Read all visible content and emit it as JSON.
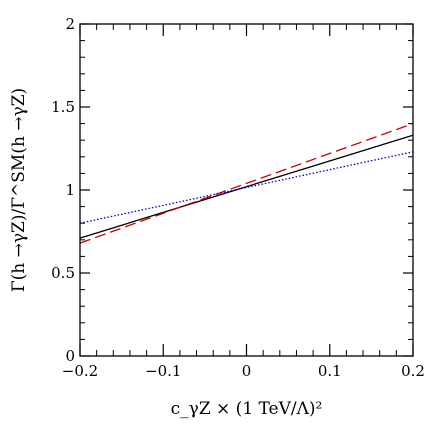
{
  "chart_data": {
    "type": "line",
    "title": "",
    "xlabel": "c_γZ × (1 TeV/Λ)²",
    "ylabel": "Γ(h →γZ)/Γ^SM(h →γZ)",
    "xlim": [
      -0.2,
      0.2
    ],
    "ylim": [
      0,
      2
    ],
    "x_major_ticks": [
      -0.2,
      -0.1,
      0,
      0.1,
      0.2
    ],
    "y_major_ticks": [
      0,
      0.5,
      1,
      1.5,
      2
    ],
    "x_tick_labels": [
      "−0.2",
      "−0.1",
      "0",
      "0.1",
      "0.2"
    ],
    "y_tick_labels": [
      "0",
      "0.5",
      "1",
      "1.5",
      "2"
    ],
    "x_minor_step": 0.02,
    "y_minor_step": 0.1,
    "grid": false,
    "series": [
      {
        "style": "solid",
        "color": "#000000",
        "x": [
          -0.2,
          0.2
        ],
        "y": [
          0.71,
          1.33
        ]
      },
      {
        "style": "dashed",
        "color": "#cc0000",
        "x": [
          -0.2,
          0.2
        ],
        "y": [
          0.68,
          1.4
        ]
      },
      {
        "style": "dotted",
        "color": "#0000cc",
        "x": [
          -0.2,
          0.2
        ],
        "y": [
          0.8,
          1.23
        ]
      }
    ]
  }
}
